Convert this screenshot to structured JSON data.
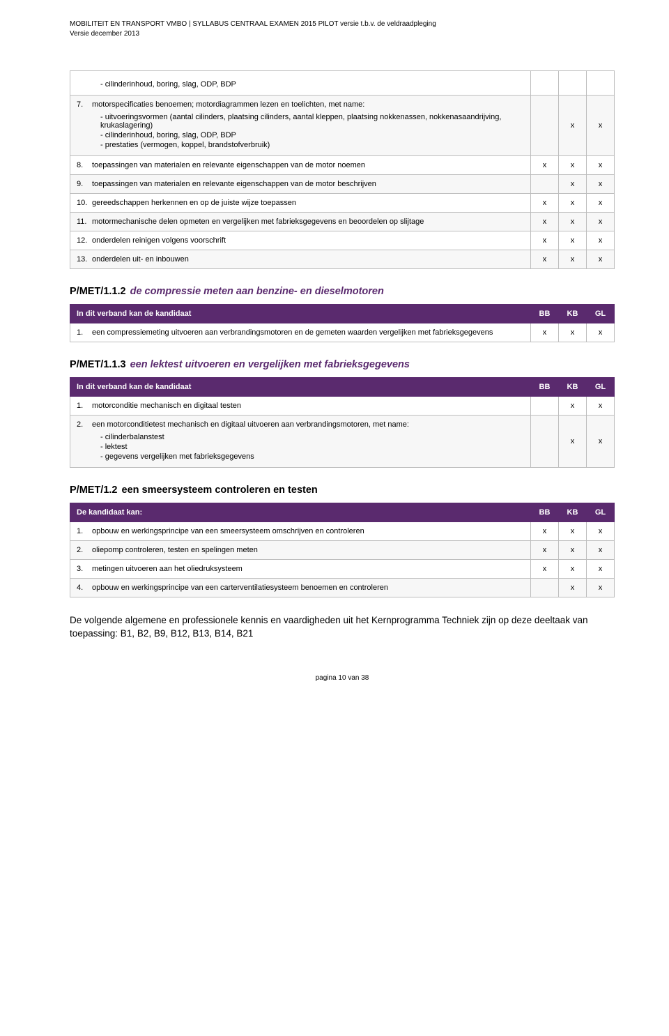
{
  "header": {
    "line1": "MOBILITEIT EN TRANSPORT VMBO | SYLLABUS CENTRAAL EXAMEN 2015 PILOT versie t.b.v. de veldraadpleging",
    "line2": "Versie december 2013"
  },
  "colors": {
    "header_bg": "#5a2a6e",
    "header_text": "#ffffff",
    "border": "#bdbdbd",
    "italic_title": "#5a2a6e"
  },
  "columns": {
    "bb": "BB",
    "kb": "KB",
    "gl": "GL"
  },
  "table1": {
    "rows": [
      {
        "num": "",
        "text": "cilinderinhoud, boring, slag, ODP, BDP",
        "bullet_only": true,
        "bb": "",
        "kb": "",
        "gl": ""
      },
      {
        "num": "7.",
        "text": "motorspecificaties benoemen; motordiagrammen lezen en toelichten, met name:",
        "bullets": [
          "uitvoeringsvormen (aantal cilinders, plaatsing cilinders, aantal kleppen, plaatsing nokkenassen, nokkenasaandrijving, krukaslagering)",
          "cilinderinhoud, boring, slag, ODP, BDP",
          "prestaties (vermogen, koppel, brandstofverbruik)"
        ],
        "bb": "",
        "kb": "x",
        "gl": "x"
      },
      {
        "num": "8.",
        "text": "toepassingen van materialen en relevante eigenschappen van de motor noemen",
        "bb": "x",
        "kb": "x",
        "gl": "x"
      },
      {
        "num": "9.",
        "text": "toepassingen van materialen en relevante eigenschappen van de motor beschrijven",
        "bb": "",
        "kb": "x",
        "gl": "x"
      },
      {
        "num": "10.",
        "text": "gereedschappen herkennen en op de juiste wijze toepassen",
        "bb": "x",
        "kb": "x",
        "gl": "x"
      },
      {
        "num": "11.",
        "text": "motormechanische delen opmeten en vergelijken met fabrieksgegevens en beoordelen op slijtage",
        "bb": "x",
        "kb": "x",
        "gl": "x"
      },
      {
        "num": "12.",
        "text": "onderdelen reinigen volgens voorschrift",
        "bb": "x",
        "kb": "x",
        "gl": "x"
      },
      {
        "num": "13.",
        "text": "onderdelen uit- en inbouwen",
        "bb": "x",
        "kb": "x",
        "gl": "x"
      }
    ]
  },
  "section112": {
    "code": "P/MET/1.1.2",
    "title": "de compressie meten aan benzine- en dieselmotoren",
    "header_label": "In dit verband kan de kandidaat",
    "rows": [
      {
        "num": "1.",
        "text": "een compressiemeting uitvoeren aan verbrandingsmotoren en de gemeten waarden vergelijken met fabrieksgegevens",
        "bb": "x",
        "kb": "x",
        "gl": "x"
      }
    ]
  },
  "section113": {
    "code": "P/MET/1.1.3",
    "title": "een lektest uitvoeren en vergelijken met fabrieksgegevens",
    "header_label": "In dit verband kan de kandidaat",
    "rows": [
      {
        "num": "1.",
        "text": "motorconditie mechanisch en digitaal testen",
        "bb": "",
        "kb": "x",
        "gl": "x"
      },
      {
        "num": "2.",
        "text": "een motorconditietest mechanisch en digitaal uitvoeren aan verbrandingsmotoren, met name:",
        "bullets": [
          "cilinderbalanstest",
          "lektest",
          "gegevens vergelijken met fabrieksgegevens"
        ],
        "bb": "",
        "kb": "x",
        "gl": "x"
      }
    ]
  },
  "section12": {
    "code": "P/MET/1.2",
    "title": "een smeersysteem controleren en testen",
    "header_label": "De kandidaat kan:",
    "rows": [
      {
        "num": "1.",
        "text": "opbouw en werkingsprincipe van een smeersysteem omschrijven en controleren",
        "bb": "x",
        "kb": "x",
        "gl": "x"
      },
      {
        "num": "2.",
        "text": "oliepomp controleren, testen en spelingen meten",
        "bb": "x",
        "kb": "x",
        "gl": "x"
      },
      {
        "num": "3.",
        "text": "metingen uitvoeren aan het oliedruksysteem",
        "bb": "x",
        "kb": "x",
        "gl": "x"
      },
      {
        "num": "4.",
        "text": "opbouw en werkingsprincipe van een carterventilatiesysteem benoemen en controleren",
        "bb": "",
        "kb": "x",
        "gl": "x"
      }
    ]
  },
  "closing_paragraph": "De volgende algemene en professionele kennis en vaardigheden uit het Kernprogramma Techniek zijn op deze deeltaak van toepassing: B1, B2, B9, B12, B13, B14, B21",
  "footer": "pagina 10 van 38"
}
